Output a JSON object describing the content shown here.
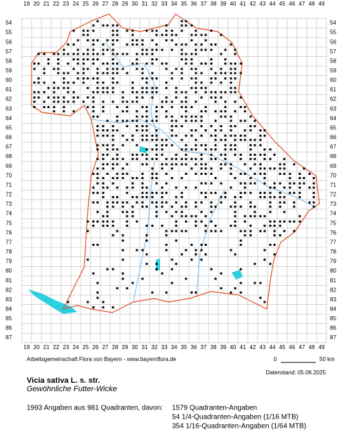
{
  "map": {
    "column_labels": [
      19,
      20,
      21,
      22,
      23,
      24,
      25,
      26,
      27,
      28,
      29,
      30,
      31,
      32,
      33,
      34,
      35,
      36,
      37,
      38,
      39,
      40,
      41,
      42,
      43,
      44,
      45,
      46,
      47,
      48,
      49
    ],
    "row_labels": [
      54,
      55,
      56,
      57,
      58,
      59,
      60,
      61,
      62,
      63,
      64,
      65,
      66,
      67,
      68,
      69,
      70,
      71,
      72,
      73,
      74,
      75,
      76,
      77,
      78,
      79,
      80,
      81,
      82,
      83,
      84,
      85,
      86,
      87
    ],
    "credit": "Arbeitsgemeinschaft Flora von Bayern - www.bayernflora.de",
    "scale_start": "0",
    "scale_end": "50 km",
    "data_date": "Datenstand: 05.06.2025",
    "species": "Vicia sativa L. s. str.",
    "common_name": "Gewöhnliche Futter-Wicke",
    "summary": "1993 Angaben aus 981 Quadranten, davon:",
    "counts": [
      "1579 Quadranten-Angaben",
      "54 1/4-Quadranten-Angaben (1/16 MTB)",
      "354 1/16-Quadranten-Angaben (1/64 MTB)"
    ]
  }
}
